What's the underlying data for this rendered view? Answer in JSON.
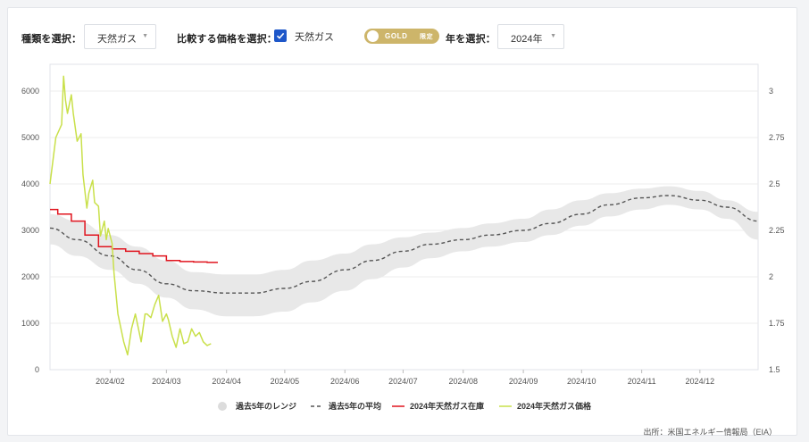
{
  "controls": {
    "type_label": "種類を選択：",
    "type_value": "天然ガス",
    "compare_label": "比較する価格を選択：",
    "compare_checkbox_label": "天然ガス",
    "compare_checked": true,
    "gold_badge": "GOLD",
    "gold_badge_suffix": "限定",
    "year_label": "年を選択：",
    "year_value": "2024年"
  },
  "colors": {
    "range": "#e8e8e8",
    "average": "#555555",
    "inventory": "#e0141e",
    "price": "#c9e04a",
    "checkbox": "#1e57c9",
    "gold": "#cdb56a"
  },
  "source_note": "出所：米国エネルギー情報局（EIA）",
  "chart_data": {
    "type": "line",
    "x_tick_labels": [
      "2024/02",
      "2024/03",
      "2024/04",
      "2024/05",
      "2024/06",
      "2024/07",
      "2024/08",
      "2024/09",
      "2024/10",
      "2024/11",
      "2024/12"
    ],
    "x_range": [
      "2024-01-01",
      "2024-12-31"
    ],
    "y_left": {
      "min": 0,
      "max": 6000,
      "ticks": [
        0,
        1000,
        2000,
        3000,
        4000,
        5000,
        6000
      ]
    },
    "y_right": {
      "min": 1.5,
      "max": 3,
      "ticks": [
        1.5,
        1.75,
        2,
        2.25,
        2.5,
        2.75,
        3
      ]
    },
    "series": [
      {
        "name": "過去5年のレンジ",
        "kind": "band",
        "axis": "left",
        "x": [
          "2024-01-01",
          "2024-01-15",
          "2024-02-01",
          "2024-02-15",
          "2024-03-01",
          "2024-03-15",
          "2024-04-01",
          "2024-04-15",
          "2024-05-01",
          "2024-05-15",
          "2024-06-01",
          "2024-06-15",
          "2024-07-01",
          "2024-07-15",
          "2024-08-01",
          "2024-08-15",
          "2024-09-01",
          "2024-09-15",
          "2024-10-01",
          "2024-10-15",
          "2024-11-01",
          "2024-11-15",
          "2024-12-01",
          "2024-12-15",
          "2024-12-31"
        ],
        "low": [
          2700,
          2450,
          2150,
          1850,
          1550,
          1300,
          1150,
          1150,
          1250,
          1450,
          1700,
          1950,
          2200,
          2400,
          2550,
          2650,
          2750,
          2900,
          3100,
          3300,
          3450,
          3550,
          3450,
          3250,
          2800
        ],
        "high": [
          3350,
          3200,
          2900,
          2650,
          2350,
          2100,
          2050,
          2050,
          2150,
          2350,
          2500,
          2700,
          2850,
          2950,
          3050,
          3150,
          3250,
          3450,
          3650,
          3800,
          3900,
          3950,
          3850,
          3650,
          3400
        ]
      },
      {
        "name": "過去5年の平均",
        "kind": "dashed",
        "axis": "left",
        "x": [
          "2024-01-01",
          "2024-01-15",
          "2024-02-01",
          "2024-02-15",
          "2024-03-01",
          "2024-03-15",
          "2024-04-01",
          "2024-04-15",
          "2024-05-01",
          "2024-05-15",
          "2024-06-01",
          "2024-06-15",
          "2024-07-01",
          "2024-07-15",
          "2024-08-01",
          "2024-08-15",
          "2024-09-01",
          "2024-09-15",
          "2024-10-01",
          "2024-10-15",
          "2024-11-01",
          "2024-11-15",
          "2024-12-01",
          "2024-12-15",
          "2024-12-31"
        ],
        "y": [
          3050,
          2800,
          2450,
          2150,
          1850,
          1700,
          1650,
          1650,
          1750,
          1900,
          2150,
          2350,
          2550,
          2700,
          2800,
          2900,
          3000,
          3150,
          3350,
          3550,
          3700,
          3750,
          3650,
          3500,
          3200
        ]
      },
      {
        "name": "2024年天然ガス在庫",
        "kind": "step",
        "axis": "left",
        "x": [
          "2024-01-01",
          "2024-01-05",
          "2024-01-12",
          "2024-01-19",
          "2024-01-26",
          "2024-02-02",
          "2024-02-09",
          "2024-02-16",
          "2024-02-23",
          "2024-03-01",
          "2024-03-08",
          "2024-03-15",
          "2024-03-22"
        ],
        "y": [
          3450,
          3350,
          3200,
          2900,
          2650,
          2600,
          2550,
          2500,
          2450,
          2350,
          2330,
          2320,
          2310
        ]
      },
      {
        "name": "2024年天然ガス価格",
        "kind": "line",
        "axis": "right",
        "x": [
          "2024-01-01",
          "2024-01-04",
          "2024-01-07",
          "2024-01-08",
          "2024-01-09",
          "2024-01-10",
          "2024-01-12",
          "2024-01-13",
          "2024-01-15",
          "2024-01-17",
          "2024-01-18",
          "2024-01-20",
          "2024-01-21",
          "2024-01-23",
          "2024-01-24",
          "2024-01-26",
          "2024-01-27",
          "2024-01-29",
          "2024-01-30",
          "2024-01-31",
          "2024-02-02",
          "2024-02-03",
          "2024-02-05",
          "2024-02-07",
          "2024-02-08",
          "2024-02-10",
          "2024-02-12",
          "2024-02-14",
          "2024-02-15",
          "2024-02-17",
          "2024-02-19",
          "2024-02-20",
          "2024-02-22",
          "2024-02-24",
          "2024-02-26",
          "2024-02-28",
          "2024-03-01",
          "2024-03-02",
          "2024-03-04",
          "2024-03-06",
          "2024-03-08",
          "2024-03-10",
          "2024-03-12",
          "2024-03-14",
          "2024-03-16",
          "2024-03-18",
          "2024-03-20",
          "2024-03-22",
          "2024-03-24"
        ],
        "y": [
          2.5,
          2.75,
          2.82,
          3.08,
          2.95,
          2.88,
          2.98,
          2.88,
          2.73,
          2.77,
          2.55,
          2.37,
          2.45,
          2.52,
          2.4,
          2.38,
          2.22,
          2.3,
          2.2,
          2.26,
          2.18,
          2.02,
          1.8,
          1.7,
          1.65,
          1.58,
          1.72,
          1.8,
          1.75,
          1.65,
          1.8,
          1.8,
          1.78,
          1.85,
          1.9,
          1.76,
          1.8,
          1.77,
          1.68,
          1.62,
          1.72,
          1.64,
          1.65,
          1.72,
          1.68,
          1.7,
          1.65,
          1.63,
          1.64
        ]
      }
    ],
    "legend_position": "bottom"
  }
}
